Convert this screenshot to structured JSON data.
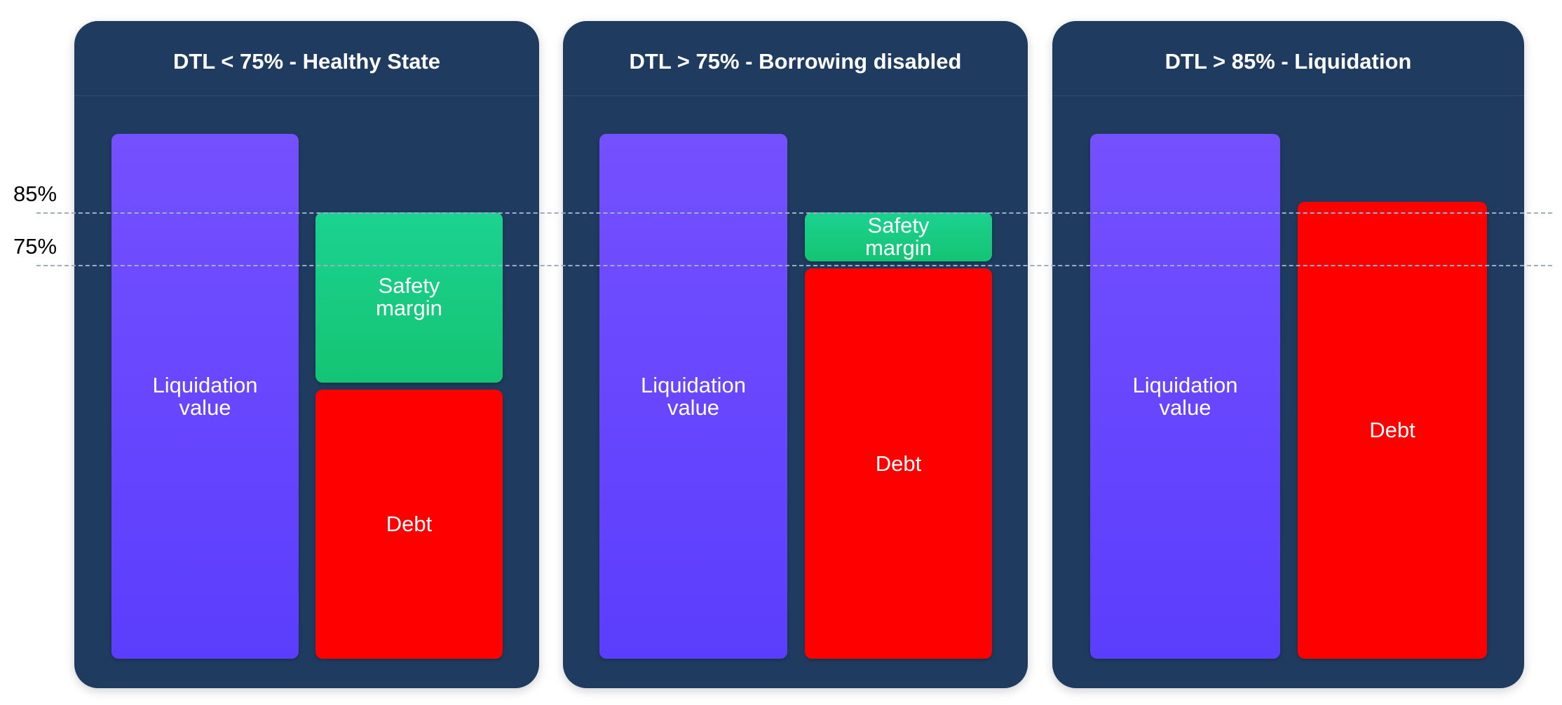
{
  "levels": [
    {
      "label": "85%",
      "value": 85
    },
    {
      "label": "75%",
      "value": 75
    }
  ],
  "panels": [
    {
      "title": "DTL < 75% - Healthy State",
      "liquidation": {
        "label": "Liquidation value",
        "line1": "Liquidation",
        "line2": "value",
        "top": 100
      },
      "margin": {
        "line1": "Safety",
        "line2": "margin",
        "bottom": 52,
        "top": 85
      },
      "debt": {
        "label": "Debt",
        "top": 52
      }
    },
    {
      "title": "DTL > 75% - Borrowing disabled",
      "liquidation": {
        "label": "Liquidation value",
        "line1": "Liquidation",
        "line2": "value",
        "top": 100
      },
      "margin": {
        "line1": "Safety",
        "line2": "margin",
        "bottom": 75,
        "top": 85
      },
      "debt": {
        "label": "Debt",
        "top": 75
      }
    },
    {
      "title": "DTL > 85% - Liquidation",
      "liquidation": {
        "label": "Liquidation value",
        "line1": "Liquidation",
        "line2": "value",
        "top": 100
      },
      "margin": null,
      "debt": {
        "label": "Debt",
        "top": 87
      }
    }
  ],
  "colors": {
    "panel": "#1f3c60",
    "liquidation": "#6446fe",
    "safety_margin": "#18cc82",
    "debt": "#ff0000",
    "level_line": "#9aaec8"
  }
}
